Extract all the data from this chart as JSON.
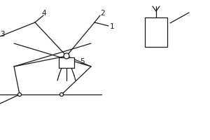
{
  "bg_color": "#ffffff",
  "line_color": "#1a1a1a",
  "label_color": "#1a1a1a",
  "lw": 0.9,
  "fig_w": 3.0,
  "fig_h": 2.0,
  "dpi": 100
}
